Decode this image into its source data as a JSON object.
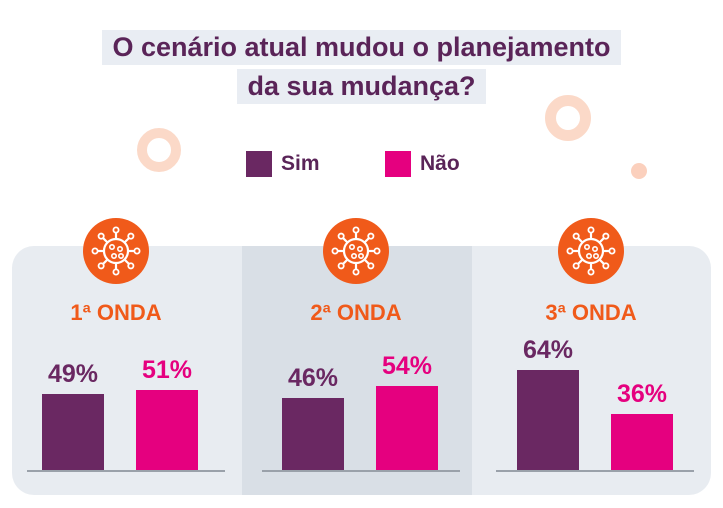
{
  "title": {
    "line1": "O cenário atual mudou o planejamento",
    "line2": "da sua mudança?"
  },
  "legend": [
    {
      "label": "Sim",
      "color": "#6a2862"
    },
    {
      "label": "Não",
      "color": "#e5007f"
    }
  ],
  "icons": {
    "wave_icon": "virus-icon"
  },
  "chart_data": {
    "type": "bar",
    "title": "O cenário atual mudou o planejamento da sua mudança?",
    "categories": [
      "1ª ONDA",
      "2ª ONDA",
      "3ª ONDA"
    ],
    "series": [
      {
        "name": "Sim",
        "values": [
          49,
          46,
          64
        ],
        "labels": [
          "49%",
          "46%",
          "64%"
        ],
        "color": "#6a2862"
      },
      {
        "name": "Não",
        "values": [
          51,
          54,
          36
        ],
        "labels": [
          "51%",
          "54%",
          "36%"
        ],
        "color": "#e5007f"
      }
    ],
    "ylim": [
      0,
      100
    ],
    "xlabel": "",
    "ylabel": "",
    "grid": false,
    "legend_position": "top-center"
  }
}
